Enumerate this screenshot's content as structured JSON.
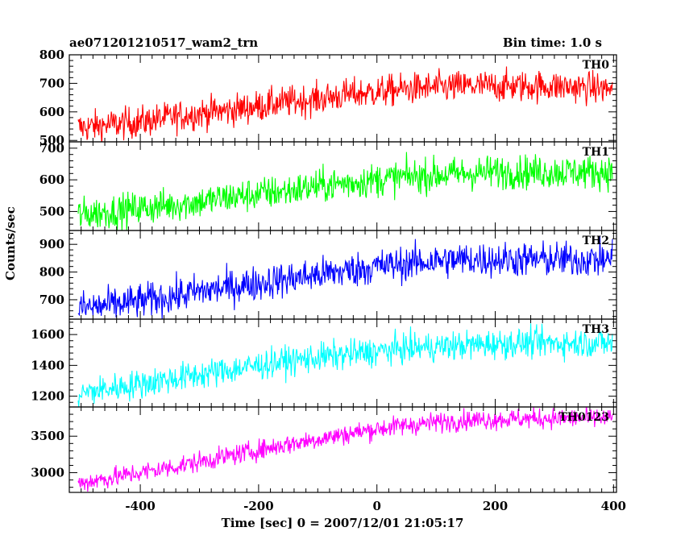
{
  "header": {
    "title_left": "ae071201210517_wam2_trn",
    "title_right": "Bin time: 1.0 s"
  },
  "axes": {
    "xlabel": "Time [sec] 0 = 2007/12/01 21:05:17",
    "ylabel": "Counts/sec"
  },
  "chart_data": {
    "type": "line",
    "title": "ae071201210517_wam2_trn",
    "xlabel": "Time [sec] 0 = 2007/12/01 21:05:17",
    "ylabel": "Counts/sec",
    "xlim": [
      -520,
      405
    ],
    "x_ticks": [
      -400,
      -200,
      0,
      200,
      400
    ],
    "x": [
      -500,
      -450,
      -400,
      -350,
      -300,
      -250,
      -200,
      -150,
      -100,
      -50,
      0,
      50,
      100,
      150,
      200,
      250,
      300,
      350,
      400
    ],
    "panels": [
      {
        "name": "TH0",
        "color": "#ff0000",
        "ylim": [
          495,
          800
        ],
        "yticks": [
          500,
          600,
          700,
          800
        ],
        "values": [
          545,
          555,
          565,
          580,
          595,
          605,
          620,
          635,
          645,
          660,
          670,
          680,
          685,
          690,
          690,
          690,
          690,
          685,
          680
        ],
        "noise": 28
      },
      {
        "name": "TH1",
        "color": "#00ff00",
        "ylim": [
          440,
          720
        ],
        "yticks": [
          500,
          600,
          700
        ],
        "values": [
          490,
          500,
          510,
          520,
          530,
          545,
          555,
          565,
          580,
          590,
          600,
          610,
          615,
          620,
          625,
          625,
          625,
          625,
          625
        ],
        "noise": 27
      },
      {
        "name": "TH2",
        "color": "#0000ff",
        "ylim": [
          630,
          950
        ],
        "yticks": [
          700,
          800,
          900
        ],
        "values": [
          670,
          680,
          695,
          710,
          730,
          745,
          760,
          775,
          790,
          805,
          820,
          830,
          840,
          845,
          845,
          845,
          845,
          845,
          845
        ],
        "noise": 32
      },
      {
        "name": "TH3",
        "color": "#00ffff",
        "ylim": [
          1130,
          1700
        ],
        "yticks": [
          1200,
          1400,
          1600
        ],
        "values": [
          1220,
          1250,
          1280,
          1310,
          1340,
          1370,
          1400,
          1430,
          1450,
          1470,
          1490,
          1510,
          1520,
          1530,
          1540,
          1545,
          1545,
          1545,
          1545
        ],
        "noise": 48
      },
      {
        "name": "TH0123",
        "color": "#ff00ff",
        "ylim": [
          2730,
          3900
        ],
        "yticks": [
          3000,
          3500
        ],
        "values": [
          2860,
          2930,
          3000,
          3070,
          3150,
          3230,
          3310,
          3390,
          3460,
          3530,
          3600,
          3650,
          3690,
          3720,
          3730,
          3740,
          3745,
          3745,
          3740
        ],
        "noise": 70
      }
    ]
  }
}
